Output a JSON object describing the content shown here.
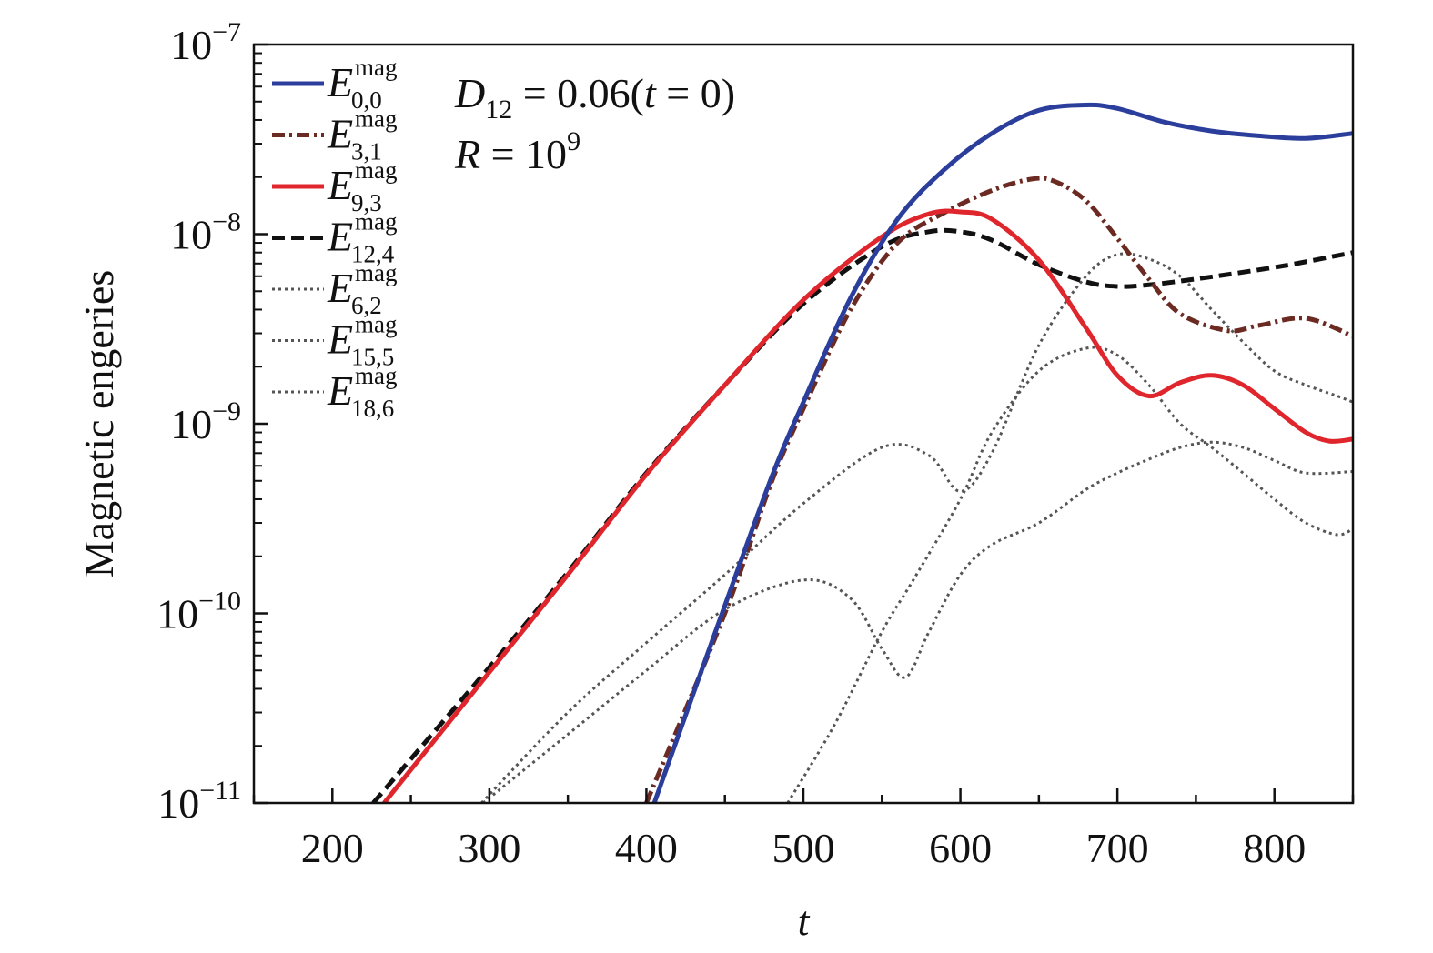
{
  "chart_data": {
    "type": "line",
    "xlabel": "t",
    "ylabel": "Magnetic engeries",
    "xlim": [
      150,
      850
    ],
    "ylim": [
      1e-11,
      1e-07
    ],
    "yscale": "log",
    "grid": false,
    "legend_placement": "top-left",
    "x_ticks": [
      200,
      300,
      400,
      500,
      600,
      700,
      800
    ],
    "x_tick_labels": [
      "200",
      "300",
      "400",
      "500",
      "600",
      "700",
      "800"
    ],
    "y_ticks": [
      {
        "value": 1e-11,
        "base": "10",
        "exp": "−11"
      },
      {
        "value": 1e-10,
        "base": "10",
        "exp": "−10"
      },
      {
        "value": 1e-09,
        "base": "10",
        "exp": "−9"
      },
      {
        "value": 1e-08,
        "base": "10",
        "exp": "−8"
      },
      {
        "value": 1e-07,
        "base": "10",
        "exp": "−7"
      }
    ],
    "annotations": [
      {
        "main": "D",
        "sub": "12",
        "rest": " = 0.06(",
        "italic2": "t",
        "rest2": " = 0)"
      },
      {
        "main": "R",
        "rest": " = 10",
        "sup": "9"
      }
    ],
    "series": [
      {
        "name": "E_{0,0}^{mag}",
        "sym": "E",
        "sup": "mag",
        "sub": "0,0",
        "color": "#2c3e9c",
        "style": "solid",
        "x": [
          405,
          450,
          480,
          500,
          530,
          560,
          590,
          620,
          650,
          680,
          700,
          730,
          760,
          790,
          820,
          850
        ],
        "y": [
          1e-11,
          1.1e-10,
          5.3e-10,
          1.3e-09,
          4.6e-09,
          1.2e-08,
          2.2e-08,
          3.4e-08,
          4.5e-08,
          4.8e-08,
          4.6e-08,
          3.9e-08,
          3.5e-08,
          3.3e-08,
          3.2e-08,
          3.4e-08
        ]
      },
      {
        "name": "E_{3,1}^{mag}",
        "sym": "E",
        "sup": "mag",
        "sub": "3,1",
        "color": "#6b2a22",
        "style": "dashdot",
        "x": [
          400,
          450,
          480,
          500,
          530,
          560,
          590,
          620,
          645,
          660,
          680,
          700,
          720,
          740,
          770,
          790,
          820,
          850
        ],
        "y": [
          1e-11,
          1e-10,
          5e-10,
          1.2e-09,
          4e-09,
          9e-09,
          1.3e-08,
          1.7e-08,
          1.95e-08,
          1.9e-08,
          1.5e-08,
          9.5e-09,
          5.8e-09,
          3.8e-09,
          3.1e-09,
          3.3e-09,
          3.6e-09,
          2.9e-09
        ]
      },
      {
        "name": "E_{9,3}^{mag}",
        "sym": "E",
        "sup": "mag",
        "sub": "9,3",
        "color": "#e0262d",
        "style": "solid",
        "x": [
          233,
          300,
          350,
          400,
          450,
          500,
          550,
          580,
          600,
          620,
          650,
          680,
          700,
          720,
          740,
          760,
          780,
          800,
          820,
          835,
          850
        ],
        "y": [
          1e-11,
          4.9e-11,
          1.6e-10,
          5.4e-10,
          1.6e-09,
          4.5e-09,
          9.7e-09,
          1.28e-08,
          1.31e-08,
          1.2e-08,
          7.3e-09,
          3.2e-09,
          1.8e-09,
          1.4e-09,
          1.65e-09,
          1.8e-09,
          1.6e-09,
          1.2e-09,
          9e-10,
          8.1e-10,
          8.3e-10
        ]
      },
      {
        "name": "E_{12,4}^{mag}",
        "sym": "E",
        "sup": "mag",
        "sub": "12,4",
        "color": "#111111",
        "style": "dashed",
        "x": [
          226,
          300,
          350,
          400,
          450,
          500,
          550,
          580,
          600,
          620,
          650,
          680,
          700,
          720,
          750,
          780,
          810,
          850
        ],
        "y": [
          1e-11,
          5.2e-11,
          1.65e-10,
          5.5e-10,
          1.6e-09,
          4.3e-09,
          8.6e-09,
          1.03e-08,
          1.03e-08,
          9.3e-09,
          6.9e-09,
          5.6e-09,
          5.3e-09,
          5.4e-09,
          5.8e-09,
          6.3e-09,
          6.9e-09,
          8e-09
        ]
      },
      {
        "name": "E_{6,2}^{mag}",
        "sym": "E",
        "sup": "mag",
        "sub": "6,2",
        "color": "#555555",
        "style": "dotted",
        "x": [
          295,
          350,
          400,
          450,
          500,
          550,
          580,
          600,
          620,
          650,
          680,
          700,
          720,
          740,
          760,
          780,
          800,
          820,
          840,
          850
        ],
        "y": [
          1e-11,
          3e-11,
          7e-11,
          1.6e-10,
          3.8e-10,
          7.5e-10,
          6.8e-10,
          4.4e-10,
          7e-10,
          2.6e-09,
          6e-09,
          7.8e-09,
          7.4e-09,
          6e-09,
          4e-09,
          2.7e-09,
          1.9e-09,
          1.6e-09,
          1.4e-09,
          1.3e-09
        ]
      },
      {
        "name": "E_{15,5}^{mag}",
        "sym": "E",
        "sup": "mag",
        "sub": "15,5",
        "color": "#555555",
        "style": "dotted",
        "x": [
          296,
          350,
          400,
          450,
          500,
          530,
          550,
          565,
          580,
          600,
          620,
          650,
          680,
          700,
          720,
          740,
          760,
          780,
          800,
          820,
          850
        ],
        "y": [
          1e-11,
          2.3e-11,
          5e-11,
          1.05e-10,
          1.5e-10,
          1.2e-10,
          6.5e-11,
          4.6e-11,
          8e-11,
          1.6e-10,
          2.3e-10,
          3e-10,
          4.5e-10,
          5.5e-10,
          6.5e-10,
          7.5e-10,
          8e-10,
          7.5e-10,
          6.4e-10,
          5.5e-10,
          5.6e-10
        ]
      },
      {
        "name": "E_{18,6}^{mag}",
        "sym": "E",
        "sup": "mag",
        "sub": "18,6",
        "color": "#555555",
        "style": "dotted",
        "x": [
          490,
          520,
          550,
          570,
          600,
          620,
          650,
          680,
          700,
          720,
          740,
          760,
          780,
          800,
          820,
          840,
          850
        ],
        "y": [
          1e-11,
          2.6e-11,
          8e-11,
          1.5e-10,
          4e-10,
          9e-10,
          1.9e-09,
          2.5e-09,
          2.3e-09,
          1.6e-09,
          1e-09,
          7.5e-10,
          5.5e-10,
          4e-10,
          3e-10,
          2.6e-10,
          2.8e-10
        ]
      }
    ]
  }
}
